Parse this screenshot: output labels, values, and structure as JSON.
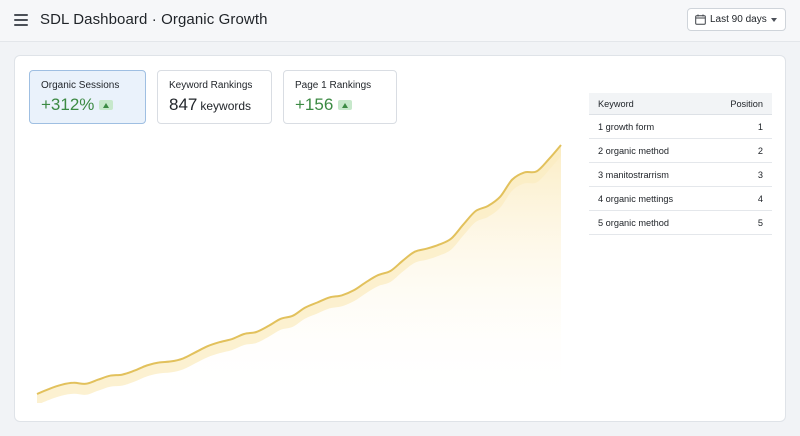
{
  "header": {
    "title": "SDL Dashboard · Organic Growth",
    "range_label": "Last 90 days"
  },
  "kpis": [
    {
      "label": "Organic Sessions",
      "value": "+312%",
      "unit": "",
      "trend": "up",
      "selected": true
    },
    {
      "label": "Keyword Rankings",
      "value": "847",
      "unit": "keywords",
      "trend": "",
      "selected": false
    },
    {
      "label": "Page 1 Rankings",
      "value": "+156",
      "unit": "",
      "trend": "up",
      "selected": false
    }
  ],
  "table": {
    "columns": [
      "Keyword",
      "Position"
    ],
    "rows": [
      {
        "keyword": "1  growth form",
        "position": "1"
      },
      {
        "keyword": "2  organic method",
        "position": "2"
      },
      {
        "keyword": "3  manitostrarrism",
        "position": "3"
      },
      {
        "keyword": "4  organic mettings",
        "position": "4"
      },
      {
        "keyword": "5  organic method",
        "position": "5"
      }
    ]
  },
  "colors": {
    "line": "#e2c15c",
    "area_top": "#fbecc2",
    "kpi_green": "#3c8a43",
    "accent_selected": "#eaf2fb"
  },
  "chart_data": {
    "type": "area",
    "series": [
      {
        "values": [
          3,
          8,
          12,
          14,
          13,
          17,
          21,
          22,
          26,
          31,
          34,
          35,
          38,
          44,
          50,
          54,
          57,
          62,
          64,
          70,
          77,
          80,
          88,
          93,
          98,
          100,
          105,
          113,
          120,
          124,
          134,
          143,
          146,
          150,
          156,
          170,
          183,
          188,
          197,
          214,
          221,
          222,
          234,
          248
        ]
      }
    ],
    "grid": false,
    "legend": "none"
  }
}
